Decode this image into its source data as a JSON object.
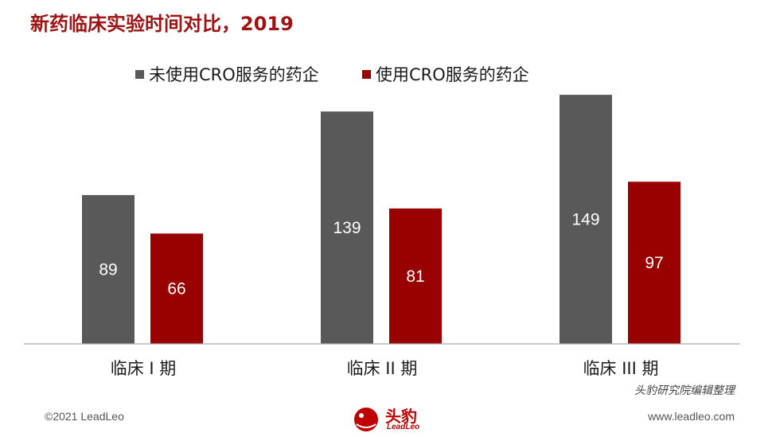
{
  "title": "新药临床实验时间对比，2019",
  "source_note": "头豹研究院编辑整理",
  "footer": {
    "copyright": "©2021 LeadLeo",
    "website": "www.leadleo.com",
    "logo_text": "头豹",
    "logo_sub": "LeadLeo"
  },
  "chart_data": {
    "type": "bar",
    "categories": [
      "临床 I 期",
      "临床 II 期",
      "临床 III 期"
    ],
    "series": [
      {
        "name": "未使用CRO服务的药企",
        "values": [
          89,
          139,
          149
        ],
        "color": "#595959"
      },
      {
        "name": "使用CRO服务的药企",
        "values": [
          66,
          81,
          97
        ],
        "color": "#990000"
      }
    ],
    "ylim": [
      0,
      160
    ],
    "legend_position": "top",
    "grid": false,
    "data_labels": true
  }
}
